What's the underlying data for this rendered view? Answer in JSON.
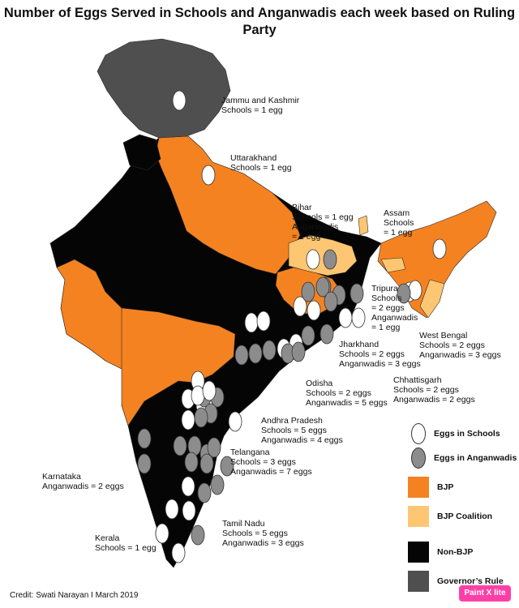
{
  "title": "Number of Eggs Served in Schools and Anganwadis each week based on Ruling Party",
  "credit": "Credit: Swati Narayan I March 2019",
  "badge": "Paint X lite",
  "colors": {
    "bjp": "#f58220",
    "bjp_coalition": "#fdc672",
    "non_bjp": "#050505",
    "governors_rule": "#4f4f4f",
    "egg_school": "#ffffff",
    "egg_anganwadi": "#8c8c8c"
  },
  "legend": [
    {
      "key": "egg_school",
      "label": "Eggs in Schools",
      "shape": "egg"
    },
    {
      "key": "egg_anganwadi",
      "label": "Eggs in Anganwadis",
      "shape": "egg"
    },
    {
      "key": "bjp",
      "label": "BJP",
      "shape": "square"
    },
    {
      "key": "bjp_coalition",
      "label": "BJP Coalition",
      "shape": "square"
    },
    {
      "key": "non_bjp",
      "label": "Non-BJP",
      "shape": "square"
    },
    {
      "key": "governors_rule",
      "label": "Governor’s Rule",
      "shape": "square"
    }
  ],
  "states": [
    {
      "id": "jk",
      "name": "Jammu and Kashmir",
      "party": "governors_rule",
      "schools": 1,
      "anganwadis": 0,
      "text": "Jammu and Kashmir\nSchools = 1 egg"
    },
    {
      "id": "uk",
      "name": "Uttarakhand",
      "party": "bjp",
      "schools": 1,
      "anganwadis": 0,
      "text": "Uttarakhand\nSchools = 1 egg"
    },
    {
      "id": "br",
      "name": "Bihar",
      "party": "bjp_coalition",
      "schools": 1,
      "anganwadis": 1,
      "text": "Bihar\nSchools = 1 egg\nAnganwadis\n= 1 egg"
    },
    {
      "id": "as",
      "name": "Assam",
      "party": "bjp",
      "schools": 1,
      "anganwadis": 0,
      "text": "Assam\nSchools\n= 1 egg"
    },
    {
      "id": "tr",
      "name": "Tripura",
      "party": "bjp",
      "schools": 2,
      "anganwadis": 1,
      "text": "Tripura\nSchools\n= 2 eggs\nAnganwadis\n= 1 egg"
    },
    {
      "id": "wb",
      "name": "West Bengal",
      "party": "non_bjp",
      "schools": 2,
      "anganwadis": 3,
      "text": "West Bengal\nSchools = 2 eggs\nAnganwadis = 3 eggs"
    },
    {
      "id": "jh",
      "name": "Jharkhand",
      "party": "bjp",
      "schools": 2,
      "anganwadis": 3,
      "text": "Jharkhand\nSchools = 2 eggs\nAnganwadis = 3 eggs"
    },
    {
      "id": "cg",
      "name": "Chhattisgarh",
      "party": "non_bjp",
      "schools": 2,
      "anganwadis": 2,
      "text": "Chhattisgarh\nSchools = 2 eggs\nAnganwadis = 2 eggs"
    },
    {
      "id": "od",
      "name": "Odisha",
      "party": "non_bjp",
      "schools": 2,
      "anganwadis": 5,
      "text": "Odisha\nSchools = 2 eggs\nAnganwadis = 5 eggs"
    },
    {
      "id": "ap",
      "name": "Andhra Pradesh",
      "party": "non_bjp",
      "schools": 5,
      "anganwadis": 4,
      "text": "Andhra Pradesh\nSchools = 5 eggs\nAnganwadis = 4 eggs"
    },
    {
      "id": "tg",
      "name": "Telangana",
      "party": "non_bjp",
      "schools": 3,
      "anganwadis": 7,
      "text": "Telangana\nSchools = 3 eggs\nAnganwadis = 7 eggs"
    },
    {
      "id": "ka",
      "name": "Karnataka",
      "party": "non_bjp",
      "schools": 0,
      "anganwadis": 2,
      "text": "Karnataka\nAnganwadis = 2 eggs"
    },
    {
      "id": "tn",
      "name": "Tamil Nadu",
      "party": "non_bjp",
      "schools": 5,
      "anganwadis": 3,
      "text": "Tamil Nadu\nSchools = 5 eggs\nAnganwadis = 3 eggs"
    },
    {
      "id": "kl",
      "name": "Kerala",
      "party": "non_bjp",
      "schools": 1,
      "anganwadis": 0,
      "text": "Kerala\nSchools = 1 egg"
    }
  ]
}
